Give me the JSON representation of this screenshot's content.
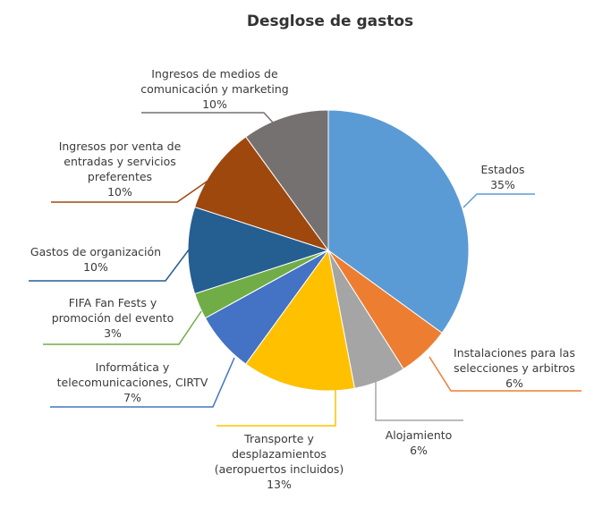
{
  "chart_data": {
    "type": "pie",
    "title": "Desglose de gastos",
    "slices": [
      {
        "name": "Estados",
        "value": 35,
        "label": "35%",
        "color": "#5b9bd5"
      },
      {
        "name": "Instalaciones para las selecciones y arbitros",
        "value": 6,
        "label": "6%",
        "color": "#ed7d31"
      },
      {
        "name": "Alojamiento",
        "value": 6,
        "label": "6%",
        "color": "#a5a5a5"
      },
      {
        "name": "Transporte y desplazamientos (aeropuertos incluidos)",
        "value": 13,
        "label": "13%",
        "color": "#ffc000"
      },
      {
        "name": "Informática y telecomunicaciones, CIRTV",
        "value": 7,
        "label": "7%",
        "color": "#4472c4"
      },
      {
        "name": "FIFA Fan Fests y promoción del evento",
        "value": 3,
        "label": "3%",
        "color": "#70ad47"
      },
      {
        "name": "Gastos de organización",
        "value": 10,
        "label": "10%",
        "color": "#255e91"
      },
      {
        "name": "Ingresos por venta de entradas y servicios preferentes",
        "value": 10,
        "label": "10%",
        "color": "#9e480e"
      },
      {
        "name": "Ingresos de medios de comunicación y marketing",
        "value": 10,
        "label": "10%",
        "color": "#767171"
      }
    ],
    "legend": "none"
  }
}
